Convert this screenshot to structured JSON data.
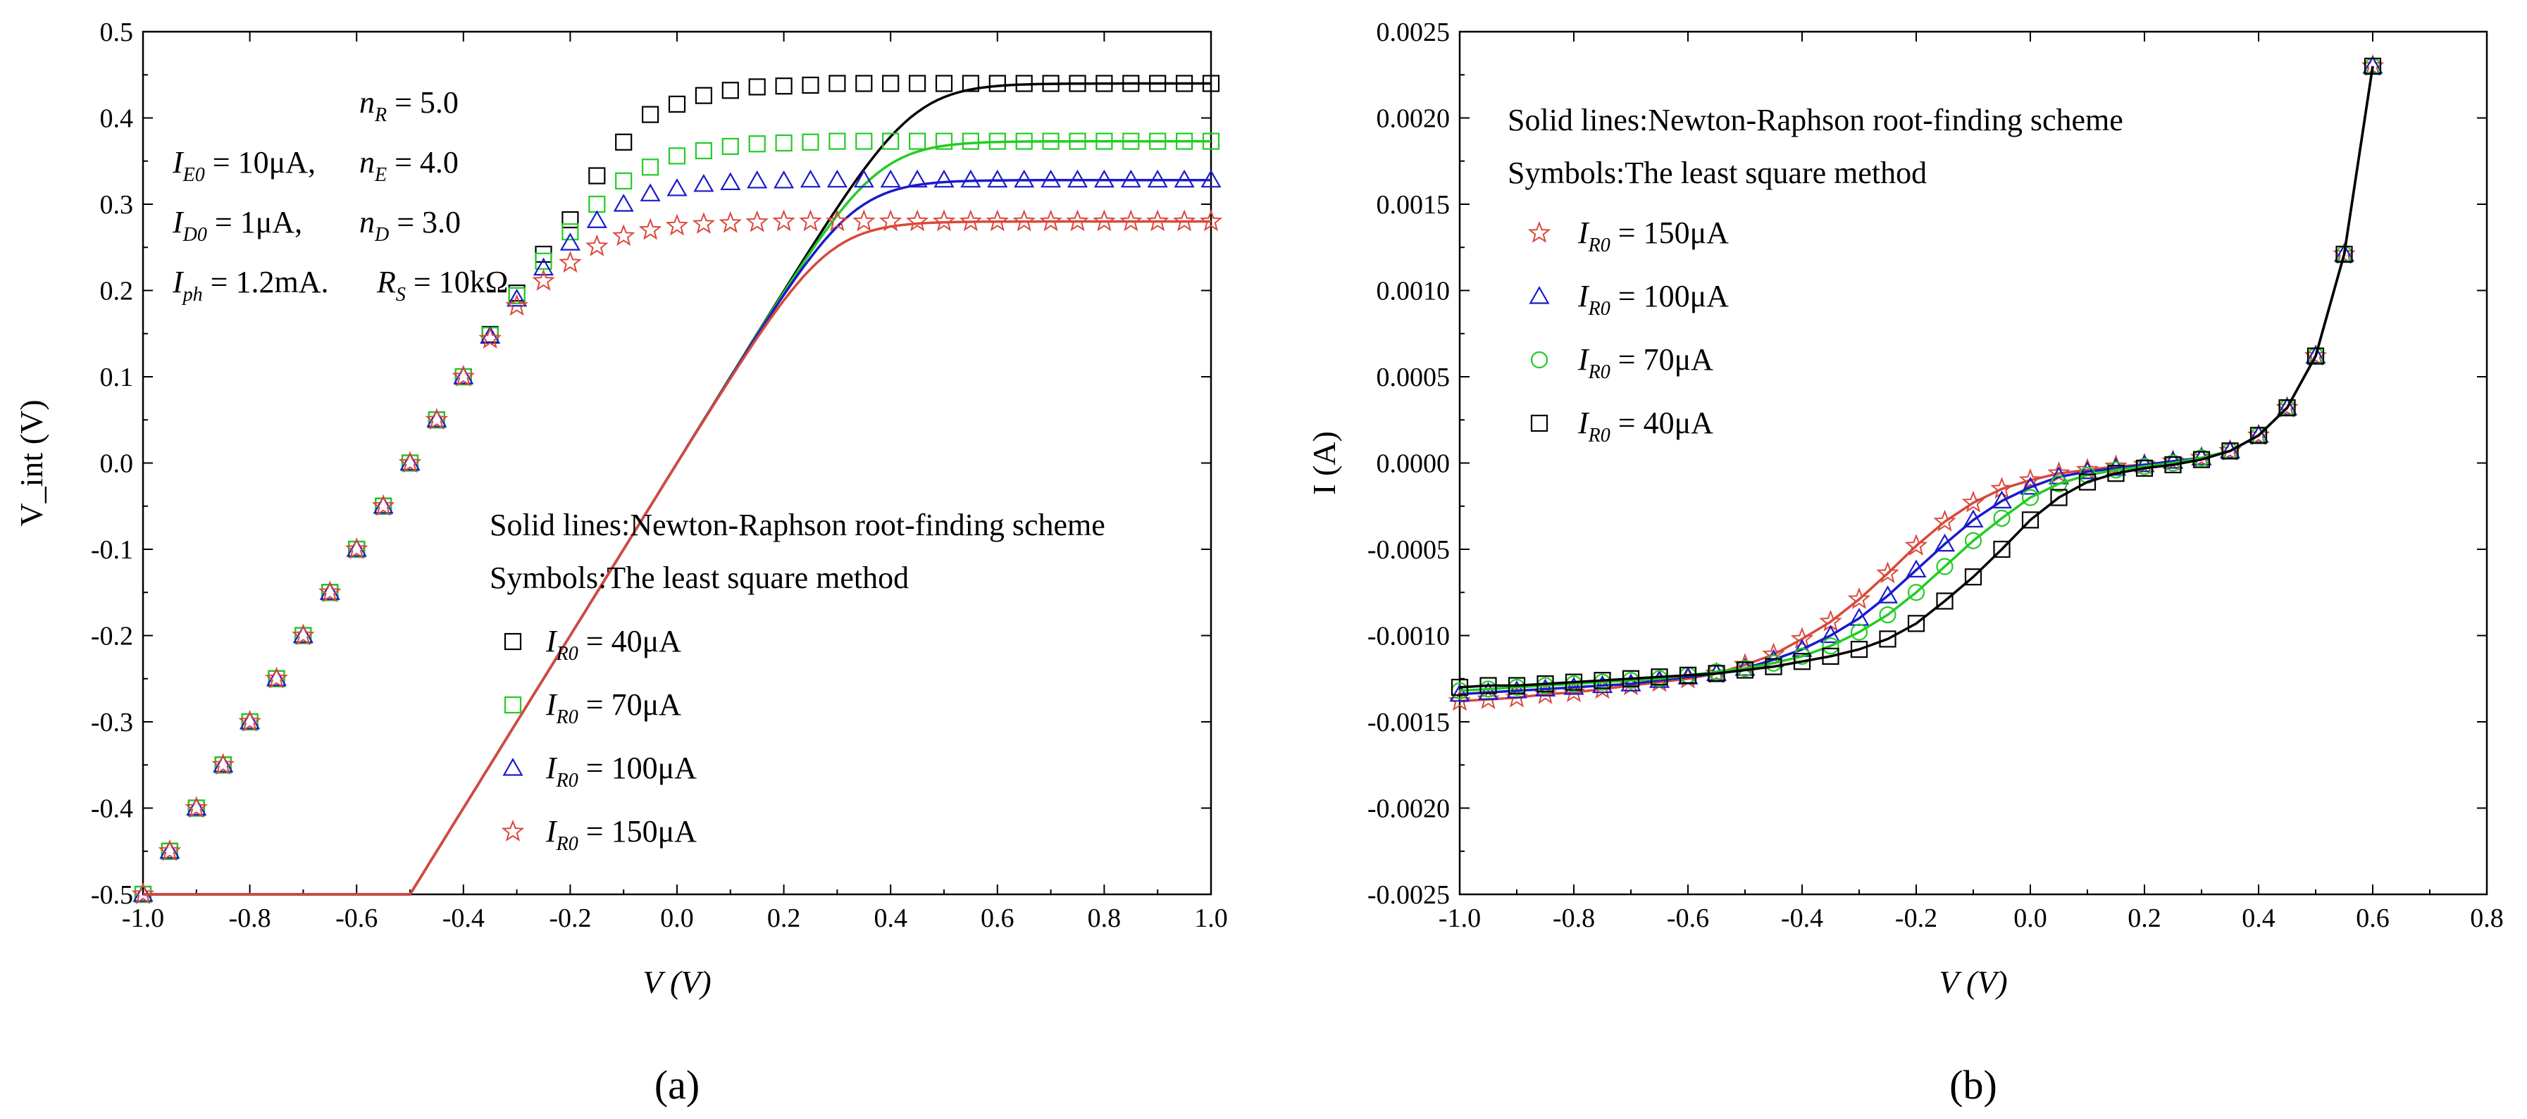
{
  "colors": {
    "I_R0_40": "#000000",
    "I_R0_70": "#22cc22",
    "I_R0_100": "#1a1acc",
    "I_R0_150": "#d9483b"
  },
  "chart_data": [
    {
      "panel": "a",
      "panel_label": "(a)",
      "type": "line",
      "xlabel": "V (V)",
      "ylabel": "V_int (V)",
      "xlim": [
        -1.0,
        1.0
      ],
      "ylim": [
        -0.5,
        0.5
      ],
      "xticks": [
        "-1.0",
        "-0.8",
        "-0.6",
        "-0.4",
        "-0.2",
        "0.0",
        "0.2",
        "0.4",
        "0.6",
        "0.8",
        "1.0"
      ],
      "yticks": [
        "-0.5",
        "-0.4",
        "-0.3",
        "-0.2",
        "-0.1",
        "0.0",
        "0.1",
        "0.2",
        "0.3",
        "0.4",
        "0.5"
      ],
      "parameters": [
        {
          "key": "n_R",
          "sym": "n",
          "sub": "R",
          "value": " = 5.0"
        },
        {
          "key": "I_E0",
          "sym": "I",
          "sub": "E0",
          "value": " = 10μA,"
        },
        {
          "key": "n_E",
          "sym": "n",
          "sub": "E",
          "value": " = 4.0"
        },
        {
          "key": "I_D0",
          "sym": "I",
          "sub": "D0",
          "value": " = 1μA,"
        },
        {
          "key": "n_D",
          "sym": "n",
          "sub": "D",
          "value": " = 3.0"
        },
        {
          "key": "I_ph",
          "sym": "I",
          "sub": "ph",
          "value": " = 1.2mA."
        },
        {
          "key": "R_S",
          "sym": "R",
          "sub": "S",
          "value": " = 10kΩ"
        }
      ],
      "legend_notes": [
        "Solid lines:Newton-Raphson root-finding scheme",
        "Symbols:The least square method"
      ],
      "series": [
        {
          "name": "I_R0 = 40μA",
          "label_sym": "I",
          "label_sub": "R0",
          "label_value": " = 40μA",
          "marker": "square",
          "color": "#000000",
          "vsat": 0.44,
          "x": [
            -1.0,
            -0.95,
            -0.9,
            -0.85,
            -0.8,
            -0.75,
            -0.7,
            -0.65,
            -0.6,
            -0.55,
            -0.5,
            -0.45,
            -0.4,
            -0.35,
            -0.3,
            -0.25,
            -0.2,
            -0.15,
            -0.1,
            -0.05,
            0.0,
            0.05,
            0.1,
            0.15,
            0.2,
            0.25,
            0.3,
            0.35,
            0.4,
            0.45,
            0.5,
            0.55,
            0.6,
            0.65,
            0.7,
            0.75,
            0.8,
            0.85,
            0.9,
            0.95,
            1.0
          ],
          "y": [
            -0.5,
            -0.45,
            -0.4,
            -0.35,
            -0.3,
            -0.25,
            -0.2,
            -0.15,
            -0.1,
            -0.05,
            0.0,
            0.05,
            0.1,
            0.149,
            0.197,
            0.242,
            0.282,
            0.333,
            0.372,
            0.404,
            0.416,
            0.426,
            0.432,
            0.436,
            0.437,
            0.438,
            0.44,
            0.44,
            0.44,
            0.44,
            0.44,
            0.44,
            0.44,
            0.44,
            0.44,
            0.44,
            0.44,
            0.44,
            0.44,
            0.44,
            0.44
          ]
        },
        {
          "name": "I_R0 = 70μA",
          "label_sym": "I",
          "label_sub": "R0",
          "label_value": " = 70μA",
          "marker": "square",
          "color": "#22cc22",
          "vsat": 0.373,
          "x": [
            -1.0,
            -0.95,
            -0.9,
            -0.85,
            -0.8,
            -0.75,
            -0.7,
            -0.65,
            -0.6,
            -0.55,
            -0.5,
            -0.45,
            -0.4,
            -0.35,
            -0.3,
            -0.25,
            -0.2,
            -0.15,
            -0.1,
            -0.05,
            0.0,
            0.05,
            0.1,
            0.15,
            0.2,
            0.25,
            0.3,
            0.35,
            0.4,
            0.45,
            0.5,
            0.55,
            0.6,
            0.65,
            0.7,
            0.75,
            0.8,
            0.85,
            0.9,
            0.95,
            1.0
          ],
          "y": [
            -0.5,
            -0.45,
            -0.4,
            -0.35,
            -0.3,
            -0.25,
            -0.2,
            -0.15,
            -0.1,
            -0.05,
            0.0,
            0.05,
            0.1,
            0.148,
            0.194,
            0.234,
            0.268,
            0.3,
            0.327,
            0.343,
            0.356,
            0.362,
            0.367,
            0.37,
            0.371,
            0.372,
            0.373,
            0.373,
            0.373,
            0.373,
            0.373,
            0.373,
            0.373,
            0.373,
            0.373,
            0.373,
            0.373,
            0.373,
            0.373,
            0.373,
            0.373
          ]
        },
        {
          "name": "I_R0 = 100μA",
          "label_sym": "I",
          "label_sub": "R0",
          "label_value": " = 100μA",
          "marker": "triangle",
          "color": "#1a1acc",
          "vsat": 0.328,
          "x": [
            -1.0,
            -0.95,
            -0.9,
            -0.85,
            -0.8,
            -0.75,
            -0.7,
            -0.65,
            -0.6,
            -0.55,
            -0.5,
            -0.45,
            -0.4,
            -0.35,
            -0.3,
            -0.25,
            -0.2,
            -0.15,
            -0.1,
            -0.05,
            0.0,
            0.05,
            0.1,
            0.15,
            0.2,
            0.25,
            0.3,
            0.35,
            0.4,
            0.45,
            0.5,
            0.55,
            0.6,
            0.65,
            0.7,
            0.75,
            0.8,
            0.85,
            0.9,
            0.95,
            1.0
          ],
          "y": [
            -0.5,
            -0.45,
            -0.4,
            -0.35,
            -0.3,
            -0.25,
            -0.2,
            -0.15,
            -0.1,
            -0.05,
            0.0,
            0.05,
            0.1,
            0.147,
            0.19,
            0.226,
            0.255,
            0.281,
            0.3,
            0.312,
            0.318,
            0.323,
            0.325,
            0.327,
            0.327,
            0.328,
            0.328,
            0.328,
            0.328,
            0.328,
            0.328,
            0.328,
            0.328,
            0.328,
            0.328,
            0.328,
            0.328,
            0.328,
            0.328,
            0.328,
            0.328
          ]
        },
        {
          "name": "I_R0 = 150μA",
          "label_sym": "I",
          "label_sub": "R0",
          "label_value": " = 150μA",
          "marker": "star",
          "color": "#d9483b",
          "vsat": 0.28,
          "x": [
            -1.0,
            -0.95,
            -0.9,
            -0.85,
            -0.8,
            -0.75,
            -0.7,
            -0.65,
            -0.6,
            -0.55,
            -0.5,
            -0.45,
            -0.4,
            -0.35,
            -0.3,
            -0.25,
            -0.2,
            -0.15,
            -0.1,
            -0.05,
            0.0,
            0.05,
            0.1,
            0.15,
            0.2,
            0.25,
            0.3,
            0.35,
            0.4,
            0.45,
            0.5,
            0.55,
            0.6,
            0.65,
            0.7,
            0.75,
            0.8,
            0.85,
            0.9,
            0.95,
            1.0
          ],
          "y": [
            -0.5,
            -0.45,
            -0.4,
            -0.35,
            -0.3,
            -0.25,
            -0.2,
            -0.15,
            -0.1,
            -0.05,
            0.0,
            0.05,
            0.1,
            0.144,
            0.182,
            0.211,
            0.232,
            0.251,
            0.263,
            0.27,
            0.275,
            0.277,
            0.278,
            0.279,
            0.28,
            0.28,
            0.28,
            0.28,
            0.28,
            0.28,
            0.28,
            0.28,
            0.28,
            0.28,
            0.28,
            0.28,
            0.28,
            0.28,
            0.28,
            0.28,
            0.28
          ]
        }
      ]
    },
    {
      "panel": "b",
      "panel_label": "(b)",
      "type": "line",
      "xlabel": "V (V)",
      "ylabel": "I (A)",
      "xlim": [
        -1.0,
        0.8
      ],
      "ylim": [
        -0.0025,
        0.0025
      ],
      "xticks": [
        "-1.0",
        "-0.8",
        "-0.6",
        "-0.4",
        "-0.2",
        "0.0",
        "0.2",
        "0.4",
        "0.6",
        "0.8"
      ],
      "yticks": [
        "-0.0025",
        "-0.0020",
        "-0.0015",
        "-0.0010",
        "-0.0005",
        "0.0000",
        "0.0005",
        "0.0010",
        "0.0015",
        "0.0020",
        "0.0025"
      ],
      "legend_notes": [
        "Solid lines:Newton-Raphson root-finding scheme",
        "Symbols:The least square method"
      ],
      "series": [
        {
          "name": "I_R0 = 150μA",
          "label_sym": "I",
          "label_sub": "R0",
          "label_value": " = 150μA",
          "marker": "star",
          "color": "#d9483b",
          "x": [
            -1.0,
            -0.95,
            -0.9,
            -0.85,
            -0.8,
            -0.75,
            -0.7,
            -0.65,
            -0.6,
            -0.55,
            -0.5,
            -0.45,
            -0.4,
            -0.35,
            -0.3,
            -0.25,
            -0.2,
            -0.15,
            -0.1,
            -0.05,
            0.0,
            0.05,
            0.1,
            0.15,
            0.2,
            0.25,
            0.3,
            0.35,
            0.4,
            0.45,
            0.5,
            0.55,
            0.6
          ],
          "y": [
            -0.00138,
            -0.00137,
            -0.00136,
            -0.00134,
            -0.00133,
            -0.00131,
            -0.00129,
            -0.00127,
            -0.00125,
            -0.00122,
            -0.00117,
            -0.00111,
            -0.00102,
            -0.00092,
            -0.00079,
            -0.00064,
            -0.00048,
            -0.00034,
            -0.00023,
            -0.00015,
            -0.0001,
            -6e-05,
            -4e-05,
            -2e-05,
            -1e-05,
            1e-05,
            3e-05,
            7e-05,
            0.00016,
            0.00032,
            0.00062,
            0.00121,
            0.0023
          ]
        },
        {
          "name": "I_R0 = 100μA",
          "label_sym": "I",
          "label_sub": "R0",
          "label_value": " = 100μA",
          "marker": "triangle",
          "color": "#1a1acc",
          "x": [
            -1.0,
            -0.95,
            -0.9,
            -0.85,
            -0.8,
            -0.75,
            -0.7,
            -0.65,
            -0.6,
            -0.55,
            -0.5,
            -0.45,
            -0.4,
            -0.35,
            -0.3,
            -0.25,
            -0.2,
            -0.15,
            -0.1,
            -0.05,
            0.0,
            0.05,
            0.1,
            0.15,
            0.2,
            0.25,
            0.3,
            0.35,
            0.4,
            0.45,
            0.5,
            0.55,
            0.6
          ],
          "y": [
            -0.00134,
            -0.00133,
            -0.00132,
            -0.00131,
            -0.0013,
            -0.00129,
            -0.00128,
            -0.00126,
            -0.00124,
            -0.00122,
            -0.00119,
            -0.00114,
            -0.00108,
            -0.001,
            -0.0009,
            -0.00077,
            -0.00062,
            -0.00047,
            -0.00033,
            -0.00022,
            -0.00014,
            -8e-05,
            -5e-05,
            -3e-05,
            -1e-05,
            1e-05,
            3e-05,
            7e-05,
            0.00016,
            0.00032,
            0.00062,
            0.00121,
            0.0023
          ]
        },
        {
          "name": "I_R0 = 70μA",
          "label_sym": "I",
          "label_sub": "R0",
          "label_value": " = 70μA",
          "marker": "circle",
          "color": "#22cc22",
          "x": [
            -1.0,
            -0.95,
            -0.9,
            -0.85,
            -0.8,
            -0.75,
            -0.7,
            -0.65,
            -0.6,
            -0.55,
            -0.5,
            -0.45,
            -0.4,
            -0.35,
            -0.3,
            -0.25,
            -0.2,
            -0.15,
            -0.1,
            -0.05,
            0.0,
            0.05,
            0.1,
            0.15,
            0.2,
            0.25,
            0.3,
            0.35,
            0.4,
            0.45,
            0.5,
            0.55,
            0.6
          ],
          "y": [
            -0.00132,
            -0.00131,
            -0.0013,
            -0.00129,
            -0.00128,
            -0.00127,
            -0.00126,
            -0.00125,
            -0.00123,
            -0.00121,
            -0.00119,
            -0.00116,
            -0.00112,
            -0.00106,
            -0.00098,
            -0.00088,
            -0.00075,
            -0.0006,
            -0.00045,
            -0.00032,
            -0.0002,
            -0.00012,
            -7e-05,
            -4e-05,
            -2e-05,
            0.0,
            3e-05,
            7e-05,
            0.00016,
            0.00032,
            0.00062,
            0.00121,
            0.0023
          ]
        },
        {
          "name": "I_R0 = 40μA",
          "label_sym": "I",
          "label_sub": "R0",
          "label_value": " = 40μA",
          "marker": "square",
          "color": "#000000",
          "x": [
            -1.0,
            -0.95,
            -0.9,
            -0.85,
            -0.8,
            -0.75,
            -0.7,
            -0.65,
            -0.6,
            -0.55,
            -0.5,
            -0.45,
            -0.4,
            -0.35,
            -0.3,
            -0.25,
            -0.2,
            -0.15,
            -0.1,
            -0.05,
            0.0,
            0.05,
            0.1,
            0.15,
            0.2,
            0.25,
            0.3,
            0.35,
            0.4,
            0.45,
            0.5,
            0.55,
            0.6
          ],
          "y": [
            -0.0013,
            -0.00129,
            -0.00129,
            -0.00128,
            -0.00127,
            -0.00126,
            -0.00125,
            -0.00124,
            -0.00123,
            -0.00122,
            -0.0012,
            -0.00118,
            -0.00115,
            -0.00112,
            -0.00108,
            -0.00102,
            -0.00093,
            -0.0008,
            -0.00066,
            -0.0005,
            -0.00033,
            -0.0002,
            -0.00011,
            -6e-05,
            -3e-05,
            -1e-05,
            2e-05,
            7e-05,
            0.00016,
            0.00032,
            0.00062,
            0.00121,
            0.0023
          ]
        }
      ]
    }
  ]
}
